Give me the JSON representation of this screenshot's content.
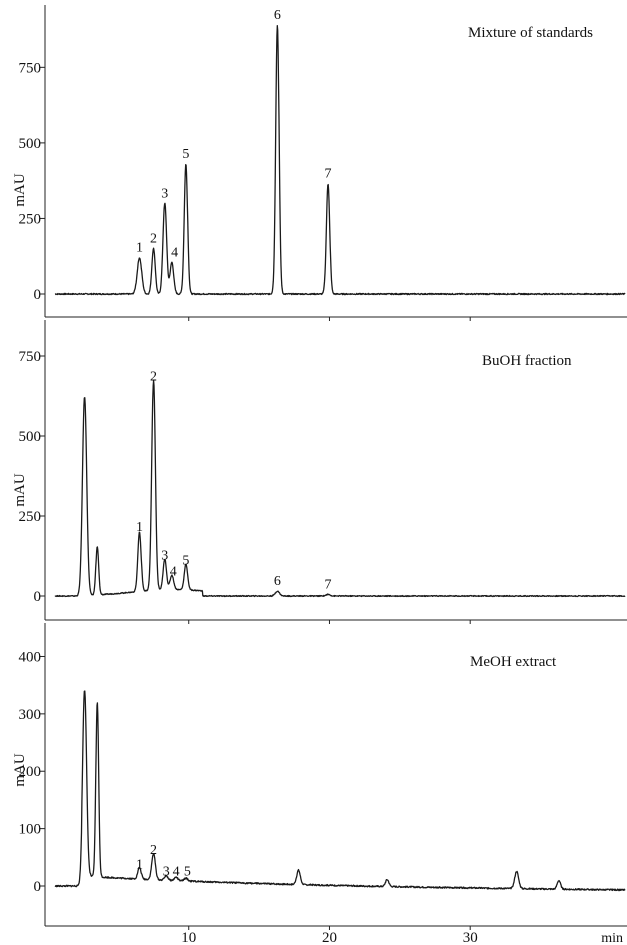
{
  "chart_data": [
    {
      "type": "line",
      "title": "Mixture of standards",
      "ylabel": "mAU",
      "xlabel": "min",
      "xlim": [
        0,
        41
      ],
      "ylim": [
        -50,
        1000
      ],
      "yticks": [
        0,
        250,
        500,
        750
      ],
      "xticks": [
        10,
        20,
        30
      ],
      "baseline": 0,
      "peaks": [
        {
          "x": 6.5,
          "y": 120,
          "w": 0.16
        },
        {
          "x": 7.5,
          "y": 150,
          "w": 0.12
        },
        {
          "x": 8.3,
          "y": 300,
          "w": 0.13
        },
        {
          "x": 8.8,
          "y": 105,
          "w": 0.13
        },
        {
          "x": 9.8,
          "y": 430,
          "w": 0.12
        },
        {
          "x": 16.3,
          "y": 890,
          "w": 0.12
        },
        {
          "x": 19.9,
          "y": 365,
          "w": 0.12
        }
      ],
      "peak_labels": [
        {
          "text": "1",
          "x": 6.5,
          "y": 120
        },
        {
          "text": "2",
          "x": 7.5,
          "y": 150
        },
        {
          "text": "3",
          "x": 8.3,
          "y": 300
        },
        {
          "text": "4",
          "x": 9.0,
          "y": 105
        },
        {
          "text": "5",
          "x": 9.8,
          "y": 430
        },
        {
          "text": "6",
          "x": 16.3,
          "y": 890
        },
        {
          "text": "7",
          "x": 19.9,
          "y": 365
        }
      ]
    },
    {
      "type": "line",
      "title": "BuOH fraction",
      "ylabel": "mAU",
      "xlabel": "min",
      "xlim": [
        0,
        41
      ],
      "ylim": [
        -50,
        1000
      ],
      "yticks": [
        0,
        250,
        500,
        750
      ],
      "xticks": [
        10,
        20,
        30
      ],
      "baseline": 0,
      "peaks": [
        {
          "x": 2.6,
          "y": 620,
          "w": 0.15
        },
        {
          "x": 3.5,
          "y": 150,
          "w": 0.1
        },
        {
          "x": 6.5,
          "y": 185,
          "w": 0.12
        },
        {
          "x": 7.5,
          "y": 655,
          "w": 0.13
        },
        {
          "x": 8.3,
          "y": 95,
          "w": 0.12
        },
        {
          "x": 8.8,
          "y": 45,
          "w": 0.13
        },
        {
          "x": 9.8,
          "y": 80,
          "w": 0.12
        },
        {
          "x": 16.3,
          "y": 15,
          "w": 0.15
        },
        {
          "x": 19.9,
          "y": 5,
          "w": 0.15
        }
      ],
      "peak_labels": [
        {
          "text": "1",
          "x": 6.5,
          "y": 185
        },
        {
          "text": "2",
          "x": 7.5,
          "y": 655
        },
        {
          "text": "3",
          "x": 8.3,
          "y": 95
        },
        {
          "text": "4",
          "x": 8.9,
          "y": 45
        },
        {
          "text": "5",
          "x": 9.8,
          "y": 80
        },
        {
          "text": "6",
          "x": 16.3,
          "y": 15
        },
        {
          "text": "7",
          "x": 19.9,
          "y": 5
        }
      ]
    },
    {
      "type": "line",
      "title": "MeOH extract",
      "ylabel": "mAU",
      "xlabel": "min",
      "xlim": [
        0,
        41
      ],
      "ylim": [
        -50,
        490
      ],
      "yticks": [
        0,
        100,
        200,
        300,
        400
      ],
      "xticks": [
        10,
        20,
        30
      ],
      "baseline": 0,
      "peaks": [
        {
          "x": 2.6,
          "y": 325,
          "w": 0.14
        },
        {
          "x": 3.5,
          "y": 305,
          "w": 0.1
        },
        {
          "x": 6.5,
          "y": 20,
          "w": 0.12
        },
        {
          "x": 7.5,
          "y": 45,
          "w": 0.13
        },
        {
          "x": 8.4,
          "y": 8,
          "w": 0.12
        },
        {
          "x": 9.1,
          "y": 6,
          "w": 0.12
        },
        {
          "x": 9.8,
          "y": 5,
          "w": 0.12
        },
        {
          "x": 17.8,
          "y": 25,
          "w": 0.13
        },
        {
          "x": 24.1,
          "y": 12,
          "w": 0.12
        },
        {
          "x": 33.3,
          "y": 30,
          "w": 0.14
        },
        {
          "x": 36.3,
          "y": 15,
          "w": 0.12
        }
      ],
      "peak_labels": [
        {
          "text": "1",
          "x": 6.5,
          "y": 20
        },
        {
          "text": "2",
          "x": 7.5,
          "y": 45
        },
        {
          "text": "3",
          "x": 8.4,
          "y": 8
        },
        {
          "text": "4",
          "x": 9.1,
          "y": 8
        },
        {
          "text": "5",
          "x": 9.9,
          "y": 8
        }
      ]
    }
  ]
}
